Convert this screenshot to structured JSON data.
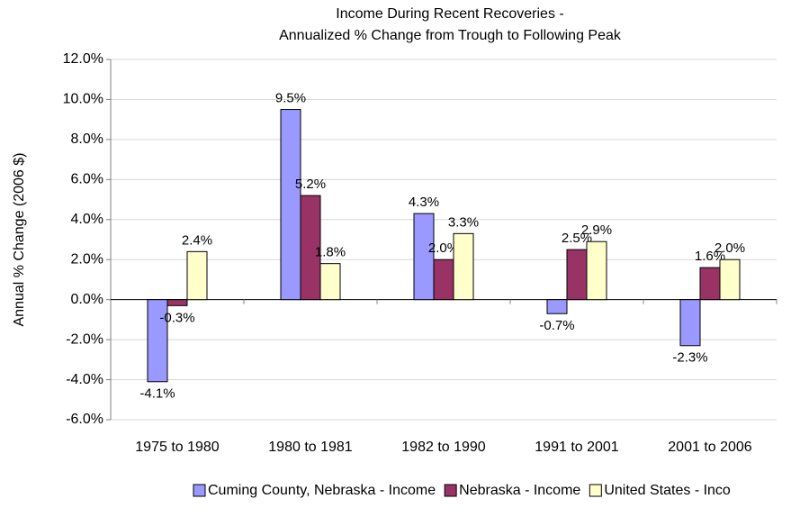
{
  "chart_data": {
    "type": "bar",
    "title": [
      "Income During Recent Recoveries -",
      "Annualized % Change from Trough to Following Peak"
    ],
    "y_label": "Annual % Change (2006 $)",
    "categories": [
      "1975 to 1980",
      "1980 to 1981",
      "1982 to 1990",
      "1991 to 2001",
      "2001 to 2006"
    ],
    "series": [
      {
        "name": "Cuming County, Nebraska - Income",
        "color": "#9999ff",
        "values": [
          -4.1,
          9.5,
          4.3,
          -0.7,
          -2.3
        ],
        "value_labels": [
          "-4.1%",
          "9.5%",
          "4.3%",
          "-0.7%",
          "-2.3%"
        ]
      },
      {
        "name": "Nebraska - Income",
        "color": "#993366",
        "values": [
          -0.3,
          5.2,
          2.0,
          2.5,
          1.6
        ],
        "value_labels": [
          "-0.3%",
          "5.2%",
          "2.0%",
          "2.5%",
          "1.6%"
        ]
      },
      {
        "name": "United States - Inco",
        "color": "#ffffcc",
        "values": [
          2.4,
          1.8,
          3.3,
          2.9,
          2.0
        ],
        "value_labels": [
          "2.4%",
          "1.8%",
          "3.3%",
          "2.9%",
          "2.0%"
        ]
      }
    ],
    "ylim": [
      -6,
      12
    ],
    "yticks": [
      {
        "value": -6,
        "label": "-6.0%"
      },
      {
        "value": -4,
        "label": "-4.0%"
      },
      {
        "value": -2,
        "label": "-2.0%"
      },
      {
        "value": 0,
        "label": "0.0%"
      },
      {
        "value": 2,
        "label": "2.0%"
      },
      {
        "value": 4,
        "label": "4.0%"
      },
      {
        "value": 6,
        "label": "6.0%"
      },
      {
        "value": 8,
        "label": "8.0%"
      },
      {
        "value": 10,
        "label": "10.0%"
      },
      {
        "value": 12,
        "label": "12.0%"
      }
    ],
    "grid": true,
    "legend": "bottom"
  }
}
